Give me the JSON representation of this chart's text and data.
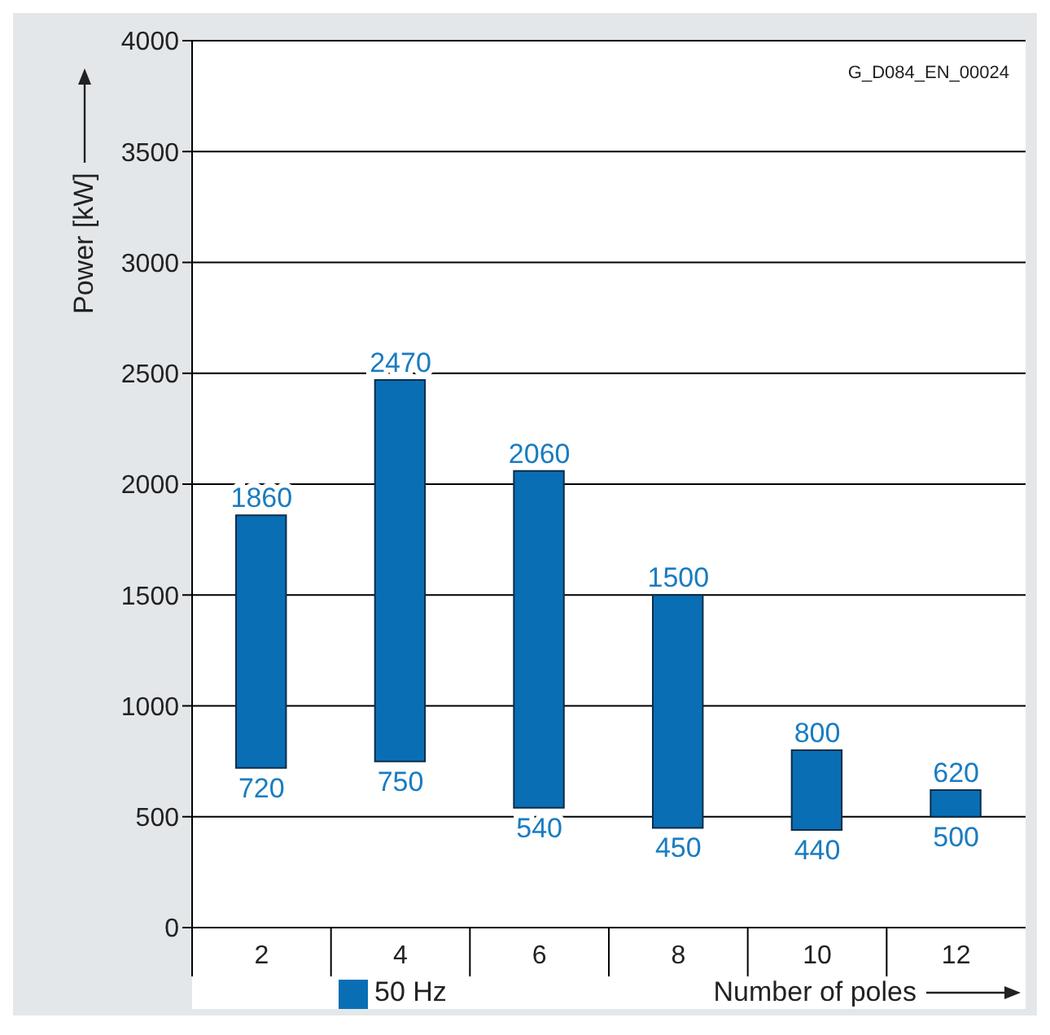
{
  "chart_data": {
    "type": "bar",
    "xlabel": "Number of poles",
    "ylabel": "Power [kW]",
    "categories": [
      "2",
      "4",
      "6",
      "8",
      "10",
      "12"
    ],
    "series": [
      {
        "name": "50 Hz",
        "color": "#0a6eb4",
        "values": [
          1140,
          1720,
          1520,
          1050,
          360,
          120
        ],
        "base": [
          720,
          750,
          540,
          450,
          440,
          500
        ]
      }
    ],
    "ylim": [
      0,
      4000
    ],
    "yticks": [
      0,
      500,
      1000,
      1500,
      2000,
      2500,
      3000,
      3500,
      4000
    ],
    "grid": "y",
    "legend": "bottom left",
    "annotations": [
      "G_D084_EN_00024",
      {
        "text": "1860",
        "x": "2",
        "y": 1860
      },
      {
        "text": "720",
        "x": "2",
        "y": 720
      },
      {
        "text": "2470",
        "x": "4",
        "y": 2470
      },
      {
        "text": "750",
        "x": "4",
        "y": 750
      },
      {
        "text": "2060",
        "x": "6",
        "y": 2060
      },
      {
        "text": "540",
        "x": "6",
        "y": 540
      },
      {
        "text": "1500",
        "x": "8",
        "y": 1500
      },
      {
        "text": "450",
        "x": "8",
        "y": 450
      },
      {
        "text": "800",
        "x": "10",
        "y": 800
      },
      {
        "text": "440",
        "x": "10",
        "y": 440
      },
      {
        "text": "620",
        "x": "12",
        "y": 620
      },
      {
        "text": "500",
        "x": "12",
        "y": 500
      }
    ]
  }
}
